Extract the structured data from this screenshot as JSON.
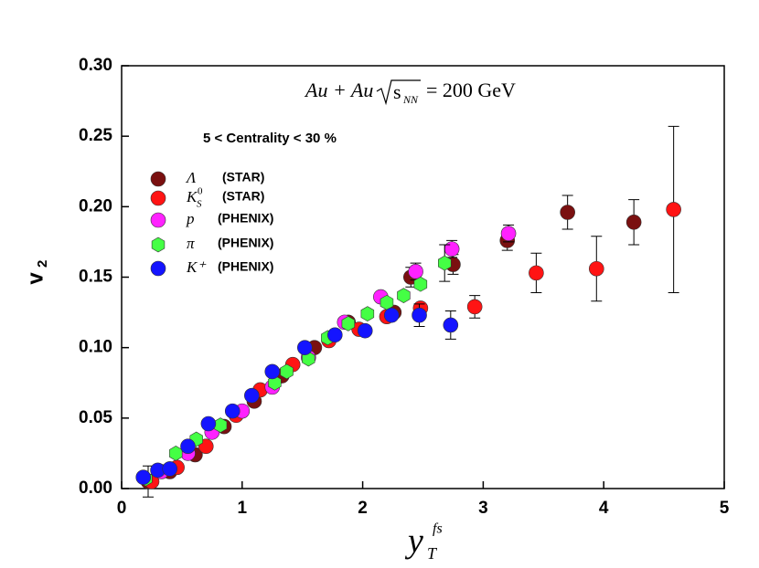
{
  "chart_data": {
    "type": "scatter",
    "title": "Au + Au",
    "title_root": "s",
    "title_root_sub": "NN",
    "title_value": "= 200 GeV",
    "annotation": "5 < Centrality < 30 %",
    "xlabel": "y",
    "xlabel_sub": "T",
    "xlabel_sup": "fs",
    "ylabel": "v",
    "ylabel_sub": "2",
    "xlim": [
      0,
      5
    ],
    "ylim": [
      0,
      0.3
    ],
    "xticks": [
      0,
      1,
      2,
      3,
      4,
      5
    ],
    "yticks": [
      {
        "value": 0,
        "label": "0.00"
      },
      0.05,
      {
        "value": 0.1,
        "label": "0.10"
      },
      0.15,
      {
        "value": 0.2,
        "label": "0.20"
      },
      0.25,
      {
        "value": 0.3,
        "label": "0.30"
      }
    ],
    "series": [
      {
        "name": "Λ",
        "experiment": "(STAR)",
        "color": "#7a1010",
        "marker": "circle",
        "x": [
          0.22,
          0.4,
          0.61,
          0.85,
          1.1,
          1.33,
          1.6,
          1.88,
          2.26,
          2.4,
          2.75,
          3.2,
          3.7,
          4.25
        ],
        "values": [
          0.005,
          0.012,
          0.024,
          0.044,
          0.062,
          0.08,
          0.1,
          0.118,
          0.125,
          0.15,
          0.159,
          0.176,
          0.196,
          0.189
        ],
        "errors": [
          0.011,
          null,
          null,
          null,
          null,
          null,
          null,
          null,
          null,
          0.007,
          0.007,
          0.007,
          0.012,
          0.016
        ]
      },
      {
        "name": "K",
        "name_sub": "S",
        "name_sup": "0",
        "experiment": "(STAR)",
        "color": "#ff1414",
        "marker": "circle",
        "x": [
          0.25,
          0.46,
          0.7,
          0.95,
          1.15,
          1.42,
          1.72,
          1.97,
          2.2,
          2.48,
          2.93,
          3.44,
          3.94,
          4.58
        ],
        "values": [
          0.005,
          0.015,
          0.03,
          0.052,
          0.07,
          0.088,
          0.105,
          0.113,
          0.122,
          0.128,
          0.129,
          0.153,
          0.156,
          0.198
        ],
        "errors": [
          null,
          null,
          null,
          null,
          null,
          null,
          null,
          null,
          null,
          null,
          0.008,
          0.014,
          0.023,
          0.059
        ]
      },
      {
        "name": "p",
        "experiment": "(PHENIX)",
        "color": "#ff22ff",
        "marker": "circle",
        "x": [
          0.33,
          0.55,
          0.75,
          1.0,
          1.25,
          1.55,
          1.85,
          2.15,
          2.44,
          2.74,
          3.21
        ],
        "values": [
          0.012,
          0.025,
          0.04,
          0.055,
          0.072,
          0.093,
          0.118,
          0.136,
          0.154,
          0.17,
          0.181
        ],
        "errors": [
          null,
          null,
          null,
          null,
          null,
          null,
          null,
          null,
          0.006,
          0.006,
          0.006
        ]
      },
      {
        "name": "π",
        "experiment": "(PHENIX)",
        "color": "#44ff44",
        "marker": "hexagon",
        "x": [
          0.2,
          0.45,
          0.62,
          0.82,
          1.08,
          1.27,
          1.37,
          1.55,
          1.71,
          1.88,
          2.04,
          2.2,
          2.34,
          2.48,
          2.68
        ],
        "values": [
          0.007,
          0.025,
          0.035,
          0.045,
          0.066,
          0.075,
          0.083,
          0.092,
          0.107,
          0.117,
          0.124,
          0.132,
          0.137,
          0.145,
          0.16
        ],
        "errors": [
          null,
          null,
          null,
          null,
          null,
          null,
          null,
          null,
          null,
          null,
          null,
          null,
          null,
          null,
          0.013
        ]
      },
      {
        "name": "K⁺",
        "experiment": "(PHENIX)",
        "color": "#1414ff",
        "marker": "circle",
        "x": [
          0.18,
          0.3,
          0.4,
          0.55,
          0.72,
          0.92,
          1.08,
          1.25,
          1.52,
          1.77,
          2.02,
          2.24,
          2.47,
          2.73
        ],
        "values": [
          0.008,
          0.013,
          0.014,
          0.03,
          0.046,
          0.055,
          0.066,
          0.083,
          0.1,
          0.109,
          0.112,
          0.123,
          0.123,
          0.116
        ],
        "errors": [
          null,
          null,
          null,
          null,
          null,
          null,
          null,
          null,
          null,
          null,
          null,
          null,
          0.008,
          0.01
        ]
      }
    ]
  }
}
